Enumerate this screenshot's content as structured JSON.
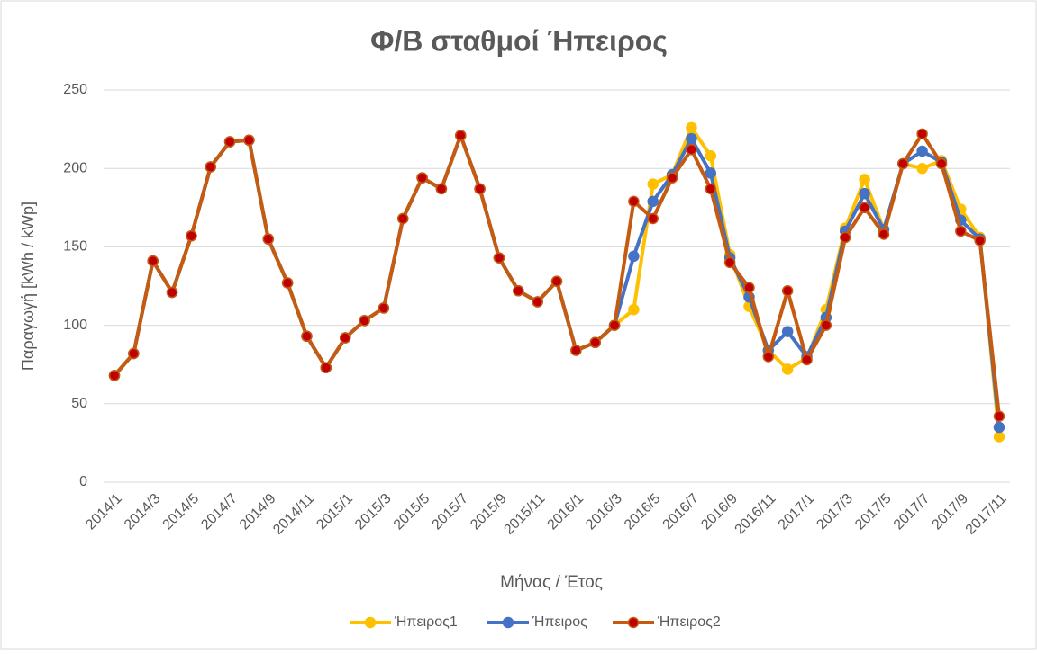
{
  "chart_data": {
    "type": "line",
    "title": "Φ/Β σταθμοί Ήπειρος",
    "x_label": "Μήνας / Έτος",
    "y_label": "Παραγωγή [kWh / kWp]",
    "categories": [
      "2014/1",
      null,
      "2014/3",
      null,
      "2014/5",
      null,
      "2014/7",
      null,
      "2014/9",
      null,
      "2014/11",
      null,
      "2015/1",
      null,
      "2015/3",
      null,
      "2015/5",
      null,
      "2015/7",
      null,
      "2015/9",
      null,
      "2015/11",
      null,
      "2016/1",
      null,
      "2016/3",
      null,
      "2016/5",
      null,
      "2016/7",
      null,
      "2016/9",
      null,
      "2016/11",
      null,
      "2017/1",
      null,
      "2017/3",
      null,
      "2017/5",
      null,
      "2017/7",
      null,
      "2017/9",
      null,
      "2017/11"
    ],
    "series": [
      {
        "name": "Ήπειρος1",
        "color": "#FFC000",
        "marker_color": "#FFC000",
        "values": [
          68,
          82,
          141,
          121,
          157,
          201,
          217,
          218,
          155,
          127,
          93,
          73,
          92,
          103,
          111,
          168,
          194,
          187,
          221,
          187,
          143,
          122,
          115,
          128,
          84,
          89,
          100,
          110,
          190,
          196,
          226,
          208,
          145,
          112,
          84,
          72,
          79,
          110,
          162,
          193,
          161,
          203,
          200,
          205,
          174,
          156,
          29
        ]
      },
      {
        "name": "Ήπειρος",
        "color": "#4472C4",
        "marker_color": "#4472C4",
        "values": [
          68,
          82,
          141,
          121,
          157,
          201,
          217,
          218,
          155,
          127,
          93,
          73,
          92,
          103,
          111,
          168,
          194,
          187,
          221,
          187,
          143,
          122,
          115,
          128,
          84,
          89,
          100,
          144,
          179,
          196,
          219,
          197,
          143,
          118,
          84,
          96,
          80,
          105,
          160,
          184,
          161,
          203,
          211,
          204,
          167,
          155,
          35
        ]
      },
      {
        "name": "Ήπειρος2",
        "color": "#C55A11",
        "marker_color": "#C00000",
        "values": [
          68,
          82,
          141,
          121,
          157,
          201,
          217,
          218,
          155,
          127,
          93,
          73,
          92,
          103,
          111,
          168,
          194,
          187,
          221,
          187,
          143,
          122,
          115,
          128,
          84,
          89,
          100,
          179,
          168,
          194,
          212,
          187,
          140,
          124,
          80,
          122,
          78,
          100,
          156,
          175,
          158,
          203,
          222,
          203,
          160,
          154,
          42
        ]
      }
    ],
    "ylim": [
      0,
      250
    ],
    "yticks": [
      0,
      50,
      100,
      150,
      200,
      250
    ],
    "grid": true,
    "legend": "bottom"
  }
}
